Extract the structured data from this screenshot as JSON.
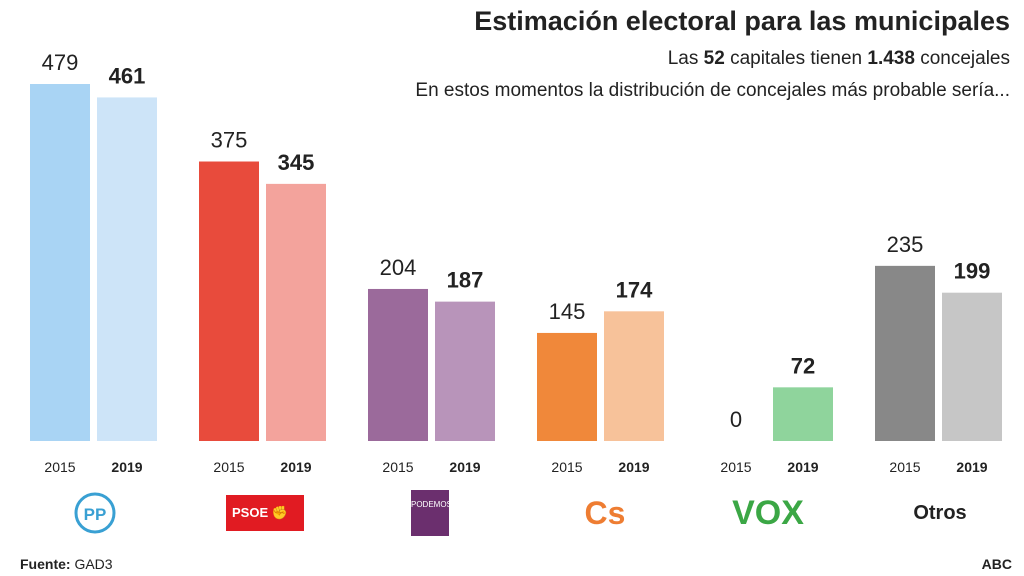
{
  "header": {
    "title": "Estimación electoral para las municipales",
    "sub1_a": "Las ",
    "sub1_b": "52",
    "sub1_c": " capitales tienen ",
    "sub1_d": "1.438",
    "sub1_e": " concejales",
    "sub2": "En estos momentos la distribución de concejales más probable sería..."
  },
  "footer": {
    "source_label": "Fuente:",
    "source": "GAD3",
    "brand": "ABC"
  },
  "chart_data": {
    "type": "bar",
    "title": "Estimación electoral para las municipales",
    "categories": [
      "PP",
      "PSOE",
      "Podemos",
      "Cs",
      "VOX",
      "Otros"
    ],
    "group_labels": [
      "2015",
      "2019"
    ],
    "series": [
      {
        "name": "2015",
        "values": [
          479,
          375,
          204,
          145,
          0,
          235
        ]
      },
      {
        "name": "2019",
        "values": [
          461,
          345,
          187,
          174,
          72,
          199
        ]
      }
    ],
    "colors": {
      "2015": [
        "#a9d4f4",
        "#e84b3c",
        "#9b6a9b",
        "#f0883a",
        "#8fd49c",
        "#888888"
      ],
      "2019": [
        "#cde4f8",
        "#f3a39c",
        "#b894ba",
        "#f7c29a",
        "#8fd49c",
        "#c6c6c6"
      ]
    },
    "logo_labels": [
      "PP",
      "PSOE",
      "PODEMOS",
      "Cs",
      "VOX",
      "Otros"
    ],
    "ylim": [
      0,
      479
    ],
    "grid": false
  }
}
